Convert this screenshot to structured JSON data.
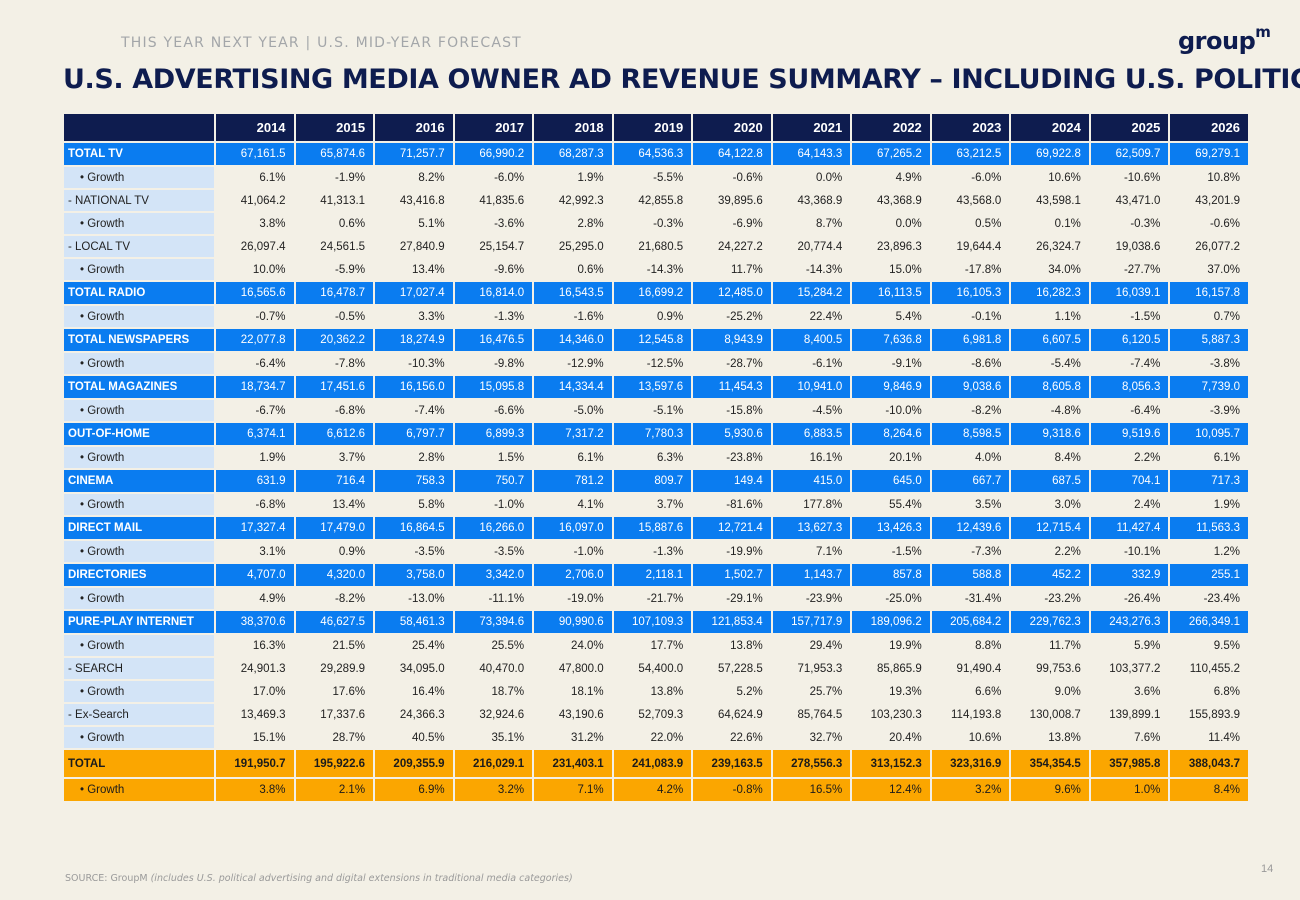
{
  "header": {
    "kicker": "THIS YEAR NEXT YEAR | U.S. MID-YEAR FORECAST",
    "logo": "group",
    "logo_sup": "m",
    "title": "U.S. ADVERTISING MEDIA OWNER AD REVENUE SUMMARY – INCLUDING U.S. POLITICAL"
  },
  "table": {
    "years": [
      "2014",
      "2015",
      "2016",
      "2017",
      "2018",
      "2019",
      "2020",
      "2021",
      "2022",
      "2023",
      "2024",
      "2025",
      "2026"
    ],
    "rows": [
      {
        "label": "TOTAL TV",
        "style": "blue",
        "values": [
          "67,161.5",
          "65,874.6",
          "71,257.7",
          "66,990.2",
          "68,287.3",
          "64,536.3",
          "64,122.8",
          "64,143.3",
          "67,265.2",
          "63,212.5",
          "69,922.8",
          "62,509.7",
          "69,279.1"
        ]
      },
      {
        "label": "• Growth",
        "style": "indent",
        "values": [
          "6.1%",
          "-1.9%",
          "8.2%",
          "-6.0%",
          "1.9%",
          "-5.5%",
          "-0.6%",
          "0.0%",
          "4.9%",
          "-6.0%",
          "10.6%",
          "-10.6%",
          "10.8%"
        ]
      },
      {
        "label": "- NATIONAL TV",
        "style": "plain",
        "values": [
          "41,064.2",
          "41,313.1",
          "43,416.8",
          "41,835.6",
          "42,992.3",
          "42,855.8",
          "39,895.6",
          "43,368.9",
          "43,368.9",
          "43,568.0",
          "43,598.1",
          "43,471.0",
          "43,201.9"
        ]
      },
      {
        "label": "• Growth",
        "style": "indent",
        "values": [
          "3.8%",
          "0.6%",
          "5.1%",
          "-3.6%",
          "2.8%",
          "-0.3%",
          "-6.9%",
          "8.7%",
          "0.0%",
          "0.5%",
          "0.1%",
          "-0.3%",
          "-0.6%"
        ]
      },
      {
        "label": "- LOCAL TV",
        "style": "plain",
        "values": [
          "26,097.4",
          "24,561.5",
          "27,840.9",
          "25,154.7",
          "25,295.0",
          "21,680.5",
          "24,227.2",
          "20,774.4",
          "23,896.3",
          "19,644.4",
          "26,324.7",
          "19,038.6",
          "26,077.2"
        ]
      },
      {
        "label": "• Growth",
        "style": "indent",
        "values": [
          "10.0%",
          "-5.9%",
          "13.4%",
          "-9.6%",
          "0.6%",
          "-14.3%",
          "11.7%",
          "-14.3%",
          "15.0%",
          "-17.8%",
          "34.0%",
          "-27.7%",
          "37.0%"
        ]
      },
      {
        "label": "TOTAL RADIO",
        "style": "blue",
        "values": [
          "16,565.6",
          "16,478.7",
          "17,027.4",
          "16,814.0",
          "16,543.5",
          "16,699.2",
          "12,485.0",
          "15,284.2",
          "16,113.5",
          "16,105.3",
          "16,282.3",
          "16,039.1",
          "16,157.8"
        ]
      },
      {
        "label": "• Growth",
        "style": "indent",
        "values": [
          "-0.7%",
          "-0.5%",
          "3.3%",
          "-1.3%",
          "-1.6%",
          "0.9%",
          "-25.2%",
          "22.4%",
          "5.4%",
          "-0.1%",
          "1.1%",
          "-1.5%",
          "0.7%"
        ]
      },
      {
        "label": "TOTAL NEWSPAPERS",
        "style": "blue",
        "values": [
          "22,077.8",
          "20,362.2",
          "18,274.9",
          "16,476.5",
          "14,346.0",
          "12,545.8",
          "8,943.9",
          "8,400.5",
          "7,636.8",
          "6,981.8",
          "6,607.5",
          "6,120.5",
          "5,887.3"
        ]
      },
      {
        "label": "• Growth",
        "style": "indent",
        "values": [
          "-6.4%",
          "-7.8%",
          "-10.3%",
          "-9.8%",
          "-12.9%",
          "-12.5%",
          "-28.7%",
          "-6.1%",
          "-9.1%",
          "-8.6%",
          "-5.4%",
          "-7.4%",
          "-3.8%"
        ]
      },
      {
        "label": "TOTAL MAGAZINES",
        "style": "blue",
        "values": [
          "18,734.7",
          "17,451.6",
          "16,156.0",
          "15,095.8",
          "14,334.4",
          "13,597.6",
          "11,454.3",
          "10,941.0",
          "9,846.9",
          "9,038.6",
          "8,605.8",
          "8,056.3",
          "7,739.0"
        ]
      },
      {
        "label": "• Growth",
        "style": "indent",
        "values": [
          "-6.7%",
          "-6.8%",
          "-7.4%",
          "-6.6%",
          "-5.0%",
          "-5.1%",
          "-15.8%",
          "-4.5%",
          "-10.0%",
          "-8.2%",
          "-4.8%",
          "-6.4%",
          "-3.9%"
        ]
      },
      {
        "label": "OUT-OF-HOME",
        "style": "blue",
        "values": [
          "6,374.1",
          "6,612.6",
          "6,797.7",
          "6,899.3",
          "7,317.2",
          "7,780.3",
          "5,930.6",
          "6,883.5",
          "8,264.6",
          "8,598.5",
          "9,318.6",
          "9,519.6",
          "10,095.7"
        ]
      },
      {
        "label": "• Growth",
        "style": "indent",
        "values": [
          "1.9%",
          "3.7%",
          "2.8%",
          "1.5%",
          "6.1%",
          "6.3%",
          "-23.8%",
          "16.1%",
          "20.1%",
          "4.0%",
          "8.4%",
          "2.2%",
          "6.1%"
        ]
      },
      {
        "label": "CINEMA",
        "style": "blue",
        "values": [
          "631.9",
          "716.4",
          "758.3",
          "750.7",
          "781.2",
          "809.7",
          "149.4",
          "415.0",
          "645.0",
          "667.7",
          "687.5",
          "704.1",
          "717.3"
        ]
      },
      {
        "label": "• Growth",
        "style": "indent",
        "values": [
          "-6.8%",
          "13.4%",
          "5.8%",
          "-1.0%",
          "4.1%",
          "3.7%",
          "-81.6%",
          "177.8%",
          "55.4%",
          "3.5%",
          "3.0%",
          "2.4%",
          "1.9%"
        ]
      },
      {
        "label": "DIRECT MAIL",
        "style": "blue",
        "values": [
          "17,327.4",
          "17,479.0",
          "16,864.5",
          "16,266.0",
          "16,097.0",
          "15,887.6",
          "12,721.4",
          "13,627.3",
          "13,426.3",
          "12,439.6",
          "12,715.4",
          "11,427.4",
          "11,563.3"
        ]
      },
      {
        "label": "• Growth",
        "style": "indent",
        "values": [
          "3.1%",
          "0.9%",
          "-3.5%",
          "-3.5%",
          "-1.0%",
          "-1.3%",
          "-19.9%",
          "7.1%",
          "-1.5%",
          "-7.3%",
          "2.2%",
          "-10.1%",
          "1.2%"
        ]
      },
      {
        "label": "DIRECTORIES",
        "style": "blue",
        "values": [
          "4,707.0",
          "4,320.0",
          "3,758.0",
          "3,342.0",
          "2,706.0",
          "2,118.1",
          "1,502.7",
          "1,143.7",
          "857.8",
          "588.8",
          "452.2",
          "332.9",
          "255.1"
        ]
      },
      {
        "label": "• Growth",
        "style": "indent",
        "values": [
          "4.9%",
          "-8.2%",
          "-13.0%",
          "-11.1%",
          "-19.0%",
          "-21.7%",
          "-29.1%",
          "-23.9%",
          "-25.0%",
          "-31.4%",
          "-23.2%",
          "-26.4%",
          "-23.4%"
        ]
      },
      {
        "label": "PURE-PLAY INTERNET",
        "style": "blue",
        "values": [
          "38,370.6",
          "46,627.5",
          "58,461.3",
          "73,394.6",
          "90,990.6",
          "107,109.3",
          "121,853.4",
          "157,717.9",
          "189,096.2",
          "205,684.2",
          "229,762.3",
          "243,276.3",
          "266,349.1"
        ]
      },
      {
        "label": "• Growth",
        "style": "indent",
        "values": [
          "16.3%",
          "21.5%",
          "25.4%",
          "25.5%",
          "24.0%",
          "17.7%",
          "13.8%",
          "29.4%",
          "19.9%",
          "8.8%",
          "11.7%",
          "5.9%",
          "9.5%"
        ]
      },
      {
        "label": "- SEARCH",
        "style": "plain",
        "values": [
          "24,901.3",
          "29,289.9",
          "34,095.0",
          "40,470.0",
          "47,800.0",
          "54,400.0",
          "57,228.5",
          "71,953.3",
          "85,865.9",
          "91,490.4",
          "99,753.6",
          "103,377.2",
          "110,455.2"
        ]
      },
      {
        "label": "• Growth",
        "style": "indent",
        "values": [
          "17.0%",
          "17.6%",
          "16.4%",
          "18.7%",
          "18.1%",
          "13.8%",
          "5.2%",
          "25.7%",
          "19.3%",
          "6.6%",
          "9.0%",
          "3.6%",
          "6.8%"
        ]
      },
      {
        "label": "- Ex-Search",
        "style": "plain",
        "values": [
          "13,469.3",
          "17,337.6",
          "24,366.3",
          "32,924.6",
          "43,190.6",
          "52,709.3",
          "64,624.9",
          "85,764.5",
          "103,230.3",
          "114,193.8",
          "130,008.7",
          "139,899.1",
          "155,893.9"
        ]
      },
      {
        "label": "• Growth",
        "style": "indent",
        "values": [
          "15.1%",
          "28.7%",
          "40.5%",
          "35.1%",
          "31.2%",
          "22.0%",
          "22.6%",
          "32.7%",
          "20.4%",
          "10.6%",
          "13.8%",
          "7.6%",
          "11.4%"
        ]
      },
      {
        "label": "TOTAL",
        "style": "total",
        "values": [
          "191,950.7",
          "195,922.6",
          "209,355.9",
          "216,029.1",
          "231,403.1",
          "241,083.9",
          "239,163.5",
          "278,556.3",
          "313,152.3",
          "323,316.9",
          "354,354.5",
          "357,985.8",
          "388,043.7"
        ]
      },
      {
        "label": "• Growth",
        "style": "total-growth",
        "values": [
          "3.8%",
          "2.1%",
          "6.9%",
          "3.2%",
          "7.1%",
          "4.2%",
          "-0.8%",
          "16.5%",
          "12.4%",
          "3.2%",
          "9.6%",
          "1.0%",
          "8.4%"
        ]
      }
    ]
  },
  "footer": {
    "source_prefix": "SOURCE: GroupM ",
    "source_note": "(includes U.S. political advertising and digital extensions in traditional media categories)",
    "page_number": "14"
  },
  "colors": {
    "navy": "#0e1c4f",
    "blue": "#0a7cf0",
    "light_blue": "#d3e4f7",
    "orange": "#fba600",
    "background": "#f3f0e6"
  }
}
